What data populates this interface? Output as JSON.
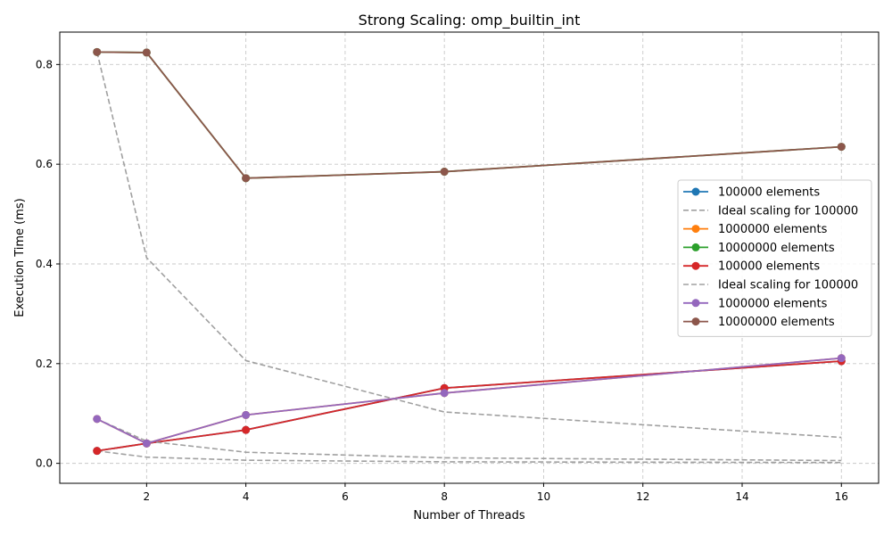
{
  "chart_data": {
    "type": "line",
    "title": "Strong Scaling: omp_builtin_int",
    "xlabel": "Number of Threads",
    "ylabel": "Execution Time (ms)",
    "xlim": [
      0.25,
      16.75
    ],
    "ylim": [
      -0.04,
      0.865
    ],
    "xticks": [
      2,
      4,
      6,
      8,
      10,
      12,
      14,
      16
    ],
    "xtick_labels": [
      "2",
      "4",
      "6",
      "8",
      "10",
      "12",
      "14",
      "16"
    ],
    "yticks": [
      0.0,
      0.2,
      0.4,
      0.6,
      0.8
    ],
    "ytick_labels": [
      "0.0",
      "0.2",
      "0.4",
      "0.6",
      "0.8"
    ],
    "grid": true,
    "legend_position": "right",
    "series": [
      {
        "name": "100000 elements",
        "color": "#1f77b4",
        "style": "solid-marker",
        "x": [
          1,
          2,
          4,
          8,
          16
        ],
        "y": [
          0.025,
          0.04,
          0.067,
          0.151,
          0.205
        ]
      },
      {
        "name": "Ideal scaling for 100000",
        "color": "#a0a0a0",
        "style": "dashed",
        "x": [
          1,
          2,
          4,
          8,
          16
        ],
        "y": [
          0.025,
          0.0125,
          0.00625,
          0.0031,
          0.0016
        ]
      },
      {
        "name": "1000000 elements",
        "color": "#ff7f0e",
        "style": "solid-marker",
        "x": [
          1,
          2,
          4,
          8,
          16
        ],
        "y": [
          0.089,
          0.04,
          0.097,
          0.141,
          0.211
        ]
      },
      {
        "name": "10000000 elements",
        "color": "#2ca02c",
        "style": "solid-marker",
        "x": [
          1,
          2,
          4,
          8,
          16
        ],
        "y": [
          0.825,
          0.824,
          0.572,
          0.585,
          0.635
        ]
      },
      {
        "name": "100000 elements",
        "color": "#d62728",
        "style": "solid-marker",
        "x": [
          1,
          2,
          4,
          8,
          16
        ],
        "y": [
          0.025,
          0.04,
          0.067,
          0.151,
          0.205
        ]
      },
      {
        "name": "Ideal scaling for 100000",
        "color": "#a0a0a0",
        "style": "dashed",
        "x": [
          1,
          2,
          4,
          8,
          16
        ],
        "y": [
          0.089,
          0.0445,
          0.0223,
          0.0111,
          0.0056
        ]
      },
      {
        "name": "1000000 elements",
        "color": "#9467bd",
        "style": "solid-marker",
        "x": [
          1,
          2,
          4,
          8,
          16
        ],
        "y": [
          0.089,
          0.04,
          0.097,
          0.141,
          0.211
        ]
      },
      {
        "name": "10000000 elements",
        "color": "#8c564b",
        "style": "solid-marker",
        "x": [
          1,
          2,
          4,
          8,
          16
        ],
        "y": [
          0.825,
          0.824,
          0.572,
          0.585,
          0.635
        ]
      }
    ],
    "unlabeled_series": [
      {
        "color": "#a0a0a0",
        "style": "dashed",
        "x": [
          1,
          2,
          4,
          8,
          16
        ],
        "y": [
          0.825,
          0.4125,
          0.206,
          0.103,
          0.052
        ]
      }
    ],
    "legend_entries": [
      {
        "label": "100000 elements",
        "color": "#1f77b4",
        "style": "solid-marker"
      },
      {
        "label": "Ideal scaling for 100000",
        "color": "#a0a0a0",
        "style": "dashed"
      },
      {
        "label": "1000000 elements",
        "color": "#ff7f0e",
        "style": "solid-marker"
      },
      {
        "label": "10000000 elements",
        "color": "#2ca02c",
        "style": "solid-marker"
      },
      {
        "label": "100000 elements",
        "color": "#d62728",
        "style": "solid-marker"
      },
      {
        "label": "Ideal scaling for 100000",
        "color": "#a0a0a0",
        "style": "dashed"
      },
      {
        "label": "1000000 elements",
        "color": "#9467bd",
        "style": "solid-marker"
      },
      {
        "label": "10000000 elements",
        "color": "#8c564b",
        "style": "solid-marker"
      }
    ]
  }
}
